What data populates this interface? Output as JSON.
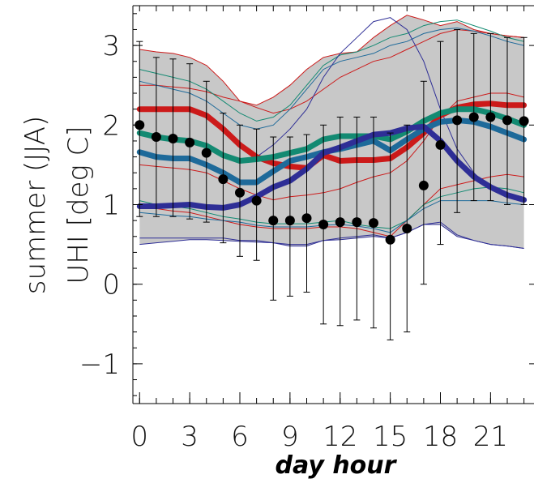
{
  "chart_data": {
    "type": "line",
    "title": "",
    "xlabel": "day hour",
    "ylabel_lines": [
      "summer (JJA)",
      "UHI [deg C]"
    ],
    "xlim": [
      -0.4,
      23.6
    ],
    "ylim": [
      -1.5,
      3.5
    ],
    "xticks": [
      0,
      3,
      6,
      9,
      12,
      15,
      18,
      21
    ],
    "xtick_labels": [
      "0",
      "3",
      "6",
      "9",
      "12",
      "15",
      "18",
      "21"
    ],
    "yticks": [
      -1,
      0,
      1,
      2,
      3
    ],
    "ytick_labels": [
      "−1",
      "0",
      "1",
      "2",
      "3"
    ],
    "grid": false,
    "legend": "none",
    "x": [
      0,
      1,
      2,
      3,
      4,
      5,
      6,
      7,
      8,
      9,
      10,
      11,
      12,
      13,
      14,
      15,
      16,
      17,
      18,
      19,
      20,
      21,
      22,
      23
    ],
    "envelope": {
      "color": "#c8c8c8",
      "upper": [
        2.95,
        2.92,
        2.9,
        2.85,
        2.75,
        2.55,
        2.3,
        2.25,
        2.35,
        2.5,
        2.7,
        2.85,
        2.9,
        2.92,
        3.1,
        3.25,
        3.38,
        3.32,
        3.25,
        3.3,
        3.2,
        3.15,
        3.12,
        3.1
      ],
      "lower": [
        0.5,
        0.52,
        0.54,
        0.56,
        0.56,
        0.55,
        0.54,
        0.53,
        0.52,
        0.48,
        0.48,
        0.55,
        0.56,
        0.58,
        0.6,
        0.58,
        0.65,
        0.75,
        0.75,
        0.6,
        0.55,
        0.5,
        0.48,
        0.45
      ]
    },
    "series": [
      {
        "color": "#cc1a1a",
        "width": 7,
        "values": [
          2.2,
          2.2,
          2.2,
          2.2,
          2.12,
          1.95,
          1.75,
          1.6,
          1.52,
          1.48,
          1.46,
          1.62,
          1.55,
          1.56,
          1.56,
          1.58,
          1.72,
          1.9,
          2.12,
          2.22,
          2.26,
          2.27,
          2.25,
          2.25
        ]
      },
      {
        "color": "#138a72",
        "width": 7,
        "values": [
          1.9,
          1.85,
          1.82,
          1.8,
          1.74,
          1.62,
          1.55,
          1.57,
          1.6,
          1.65,
          1.7,
          1.82,
          1.86,
          1.86,
          1.86,
          1.82,
          1.92,
          2.05,
          2.15,
          2.2,
          2.2,
          2.15,
          2.08,
          2.0
        ]
      },
      {
        "color": "#1e6a9a",
        "width": 7,
        "values": [
          1.66,
          1.6,
          1.58,
          1.58,
          1.5,
          1.4,
          1.28,
          1.28,
          1.42,
          1.55,
          1.6,
          1.66,
          1.7,
          1.75,
          1.8,
          1.68,
          1.82,
          1.95,
          2.04,
          2.06,
          2.04,
          1.98,
          1.9,
          1.82
        ]
      },
      {
        "color": "#2e2e96",
        "width": 7,
        "values": [
          0.98,
          0.98,
          0.99,
          1.0,
          0.97,
          0.96,
          1.0,
          1.1,
          1.22,
          1.3,
          1.45,
          1.65,
          1.72,
          1.8,
          1.88,
          1.9,
          1.96,
          1.98,
          1.8,
          1.55,
          1.35,
          1.22,
          1.12,
          1.06
        ]
      }
    ],
    "thin_series": [
      {
        "color": "#cc1a1a",
        "values": [
          1.5,
          1.48,
          1.46,
          1.44,
          1.4,
          1.3,
          1.2,
          1.12,
          1.06,
          1.1,
          1.12,
          1.15,
          1.2,
          1.28,
          1.35,
          1.4,
          1.55,
          1.8,
          2.1,
          2.3,
          2.35,
          2.4,
          2.4,
          2.35
        ]
      },
      {
        "color": "#cc1a1a",
        "values": [
          1.0,
          0.95,
          0.92,
          0.9,
          0.85,
          0.8,
          0.75,
          0.72,
          0.7,
          0.7,
          0.7,
          0.72,
          0.72,
          0.7,
          0.65,
          0.6,
          0.8,
          1.0,
          1.2,
          1.25,
          1.3,
          1.35,
          1.38,
          1.35
        ]
      },
      {
        "color": "#cc1a1a",
        "values": [
          2.5,
          2.5,
          2.48,
          2.46,
          2.42,
          2.35,
          2.3,
          2.22,
          2.15,
          2.2,
          2.3,
          2.45,
          2.6,
          2.7,
          2.8,
          2.85,
          2.95,
          3.05,
          3.15,
          3.2,
          3.18,
          3.15,
          3.12,
          3.1
        ]
      },
      {
        "color": "#138a72",
        "values": [
          2.7,
          2.65,
          2.6,
          2.55,
          2.45,
          2.3,
          2.15,
          2.05,
          2.1,
          2.25,
          2.5,
          2.75,
          2.88,
          2.92,
          3.0,
          3.1,
          3.15,
          3.25,
          3.3,
          3.32,
          3.25,
          3.18,
          3.1,
          3.05
        ]
      },
      {
        "color": "#138a72",
        "values": [
          1.05,
          1.0,
          0.98,
          0.95,
          0.9,
          0.85,
          0.82,
          0.78,
          0.76,
          0.76,
          0.76,
          0.78,
          0.8,
          0.75,
          0.72,
          0.7,
          0.8,
          1.0,
          1.1,
          1.15,
          1.2,
          1.22,
          1.2,
          1.15
        ]
      },
      {
        "color": "#1e6a9a",
        "values": [
          2.55,
          2.5,
          2.45,
          2.4,
          2.3,
          2.15,
          2.0,
          1.95,
          2.0,
          2.2,
          2.45,
          2.7,
          2.8,
          2.85,
          2.9,
          3.0,
          3.05,
          3.15,
          3.2,
          3.22,
          3.18,
          3.12,
          3.05,
          3.0
        ]
      },
      {
        "color": "#1e6a9a",
        "values": [
          0.9,
          0.88,
          0.86,
          0.85,
          0.82,
          0.8,
          0.78,
          0.74,
          0.72,
          0.72,
          0.72,
          0.74,
          0.75,
          0.73,
          0.7,
          0.65,
          0.8,
          0.95,
          1.05,
          1.05,
          1.05,
          1.05,
          1.02,
          1.0
        ]
      },
      {
        "color": "#2e2e96",
        "values": [
          1.9,
          1.85,
          1.8,
          1.78,
          1.72,
          1.62,
          1.55,
          1.6,
          1.75,
          1.95,
          2.2,
          2.6,
          2.9,
          3.1,
          3.3,
          3.35,
          3.2,
          2.8,
          2.2,
          1.7,
          1.4,
          1.2,
          1.1,
          1.05
        ]
      },
      {
        "color": "#2e2e96",
        "values": [
          0.58,
          0.58,
          0.58,
          0.58,
          0.58,
          0.58,
          0.55,
          0.55,
          0.52,
          0.5,
          0.5,
          0.55,
          0.58,
          0.6,
          0.62,
          0.58,
          0.65,
          0.75,
          0.78,
          0.62,
          0.55,
          0.5,
          0.48,
          0.45
        ]
      }
    ],
    "points": {
      "color": "#000000",
      "y": [
        2.0,
        1.85,
        1.83,
        1.78,
        1.65,
        1.32,
        1.15,
        1.05,
        0.8,
        0.8,
        0.83,
        0.75,
        0.78,
        0.78,
        0.77,
        0.56,
        0.7,
        1.24,
        1.75,
        2.06,
        2.1,
        2.1,
        2.06,
        2.05
      ],
      "err_low": [
        0.85,
        0.85,
        0.85,
        0.82,
        0.78,
        0.52,
        0.35,
        0.3,
        -0.2,
        -0.15,
        -0.1,
        -0.5,
        -0.52,
        -0.45,
        -0.55,
        -0.7,
        -0.6,
        0.0,
        0.5,
        0.9,
        1.05,
        1.05,
        1.0,
        1.0
      ],
      "err_high": [
        3.05,
        2.85,
        2.83,
        2.77,
        2.55,
        2.15,
        2.0,
        1.95,
        1.85,
        1.85,
        1.88,
        2.0,
        2.1,
        2.1,
        2.1,
        1.9,
        2.0,
        2.55,
        3.05,
        3.2,
        3.15,
        3.15,
        3.1,
        3.1
      ]
    }
  }
}
